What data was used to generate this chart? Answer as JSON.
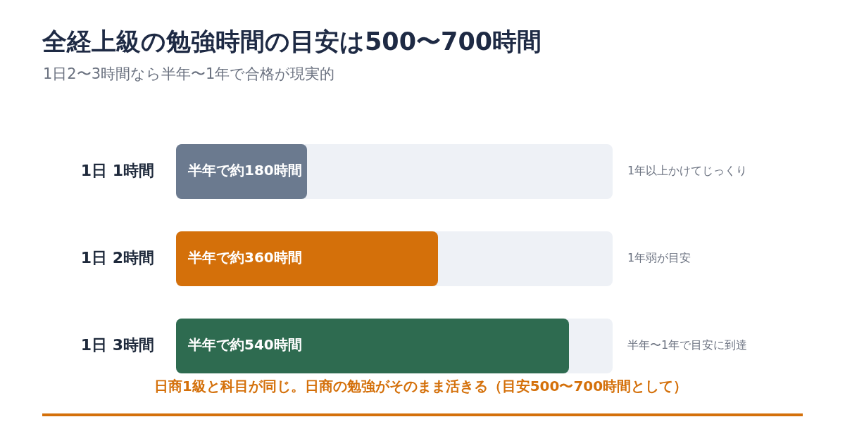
{
  "chart_data": {
    "type": "bar",
    "orientation": "horizontal",
    "title": "全経上級の勉強時間の目安は500〜700時間",
    "subtitle": "1日2〜3時間なら半年〜1年で合格が現実的",
    "categories": [
      "1日 1時間",
      "1日 2時間",
      "1日 3時間"
    ],
    "values": [
      180,
      360,
      540
    ],
    "colors": [
      "#6b7a8f",
      "#d4700a",
      "#2e6b50"
    ],
    "value_labels": [
      "半年で約180時間",
      "半年で約360時間",
      "半年で約540時間"
    ],
    "xlim": [
      0,
      600
    ],
    "tick_labels": "y",
    "annotations": [
      "1年以上かけてじっくり",
      "1年弱が目安",
      "半年〜1年で目安に到達",
      "日商1級と科目が同じ。日商の勉強がそのまま活きる（目安500〜700時間として）"
    ]
  }
}
